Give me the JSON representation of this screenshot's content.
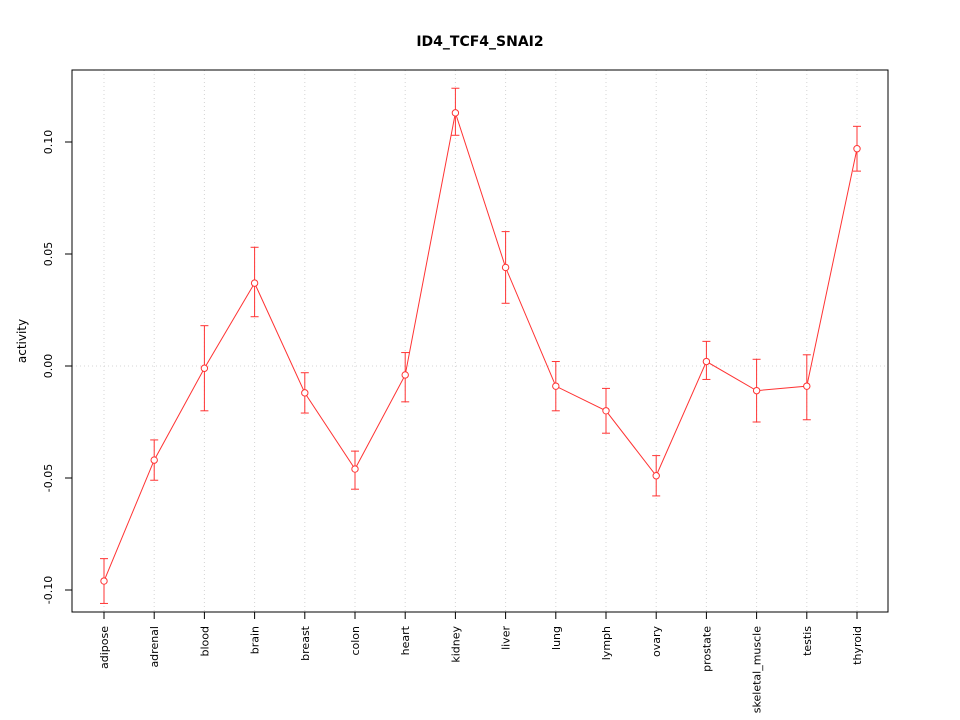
{
  "chart_data": {
    "type": "line",
    "title": "ID4_TCF4_SNAI2",
    "ylabel": "activity",
    "xlabel": "",
    "categories": [
      "adipose",
      "adrenal",
      "blood",
      "brain",
      "breast",
      "colon",
      "heart",
      "kidney",
      "liver",
      "lung",
      "lymph",
      "ovary",
      "prostate",
      "skeletal_muscle",
      "testis",
      "thyroid"
    ],
    "values": [
      -0.096,
      -0.042,
      -0.001,
      0.037,
      -0.012,
      -0.046,
      -0.004,
      0.113,
      0.044,
      -0.009,
      -0.02,
      -0.049,
      0.002,
      -0.011,
      -0.009,
      0.097
    ],
    "error_upper": [
      -0.086,
      -0.033,
      0.018,
      0.053,
      -0.003,
      -0.038,
      0.006,
      0.124,
      0.06,
      0.002,
      -0.01,
      -0.04,
      0.011,
      0.003,
      0.005,
      0.107
    ],
    "error_lower": [
      -0.106,
      -0.051,
      -0.02,
      0.022,
      -0.021,
      -0.055,
      -0.016,
      0.103,
      0.028,
      -0.02,
      -0.03,
      -0.058,
      -0.006,
      -0.025,
      -0.024,
      0.087
    ],
    "y_ticks": [
      -0.1,
      -0.05,
      0.0,
      0.05,
      0.1
    ],
    "y_tick_labels": [
      "-0.10",
      "-0.05",
      "0.00",
      "0.05",
      "0.10"
    ],
    "ylim": [
      -0.11,
      0.132
    ],
    "grid": "dotted vertical gridline at each category, dotted horizontal line at y=0",
    "zero_line": true,
    "legend": "none",
    "marker": "open-circle",
    "error_bars": true,
    "colors": {
      "series": "#ff3333",
      "grid": "#d4d4d4",
      "axis": "#000000",
      "background": "#ffffff"
    }
  }
}
